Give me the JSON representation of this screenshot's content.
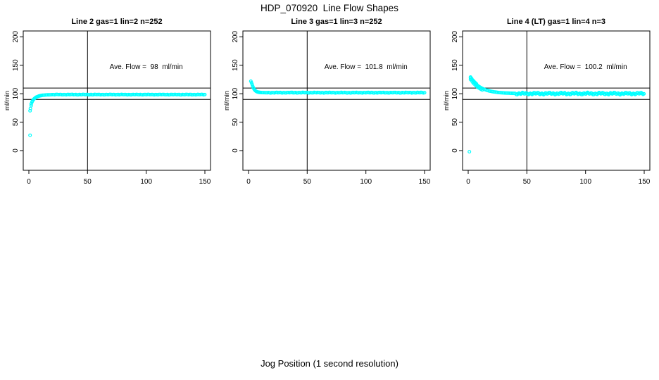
{
  "figure": {
    "title": "HDP_070920  Line Flow Shapes",
    "xlabel": "Jog Position (1 second resolution)",
    "background": "#ffffff",
    "axis_color": "#000000",
    "marker_color": "#00ffff"
  },
  "chart_data": [
    {
      "type": "scatter",
      "title": "Line 2 gas=1 lin=2 n=252",
      "gas": 1,
      "lin": 2,
      "n": 252,
      "annotation": "Ave. Flow =  98  ml/min",
      "ave_flow_ml_min": 98,
      "ylabel": "ml/min",
      "x_ticks": [
        0,
        50,
        100,
        150
      ],
      "y_ticks": [
        0,
        50,
        100,
        150,
        200
      ],
      "xlim": [
        0,
        150
      ],
      "hlines": [
        90,
        110
      ],
      "vlines": [
        50
      ],
      "annotation_pos": [
        100,
        148
      ],
      "points": [
        [
          1,
          27
        ],
        [
          1,
          70
        ],
        [
          1.3,
          74
        ],
        [
          2,
          79
        ],
        [
          2,
          82
        ],
        [
          2.6,
          85
        ],
        [
          3,
          87
        ],
        [
          3.5,
          88.5
        ],
        [
          4,
          90
        ],
        [
          4.5,
          91
        ],
        [
          5,
          92
        ],
        [
          5.5,
          92.8
        ],
        [
          6,
          93.5
        ],
        [
          6.5,
          94.1
        ],
        [
          7,
          94.6
        ],
        [
          7.5,
          95
        ],
        [
          8,
          95.4
        ],
        [
          8.5,
          95.8
        ],
        [
          9,
          96.1
        ],
        [
          9.5,
          96.4
        ],
        [
          10,
          96.6
        ],
        [
          10.5,
          96.8
        ],
        [
          11,
          97
        ],
        [
          12,
          97.3
        ],
        [
          13,
          97.5
        ],
        [
          14,
          97.7
        ],
        [
          15,
          97.8
        ],
        [
          16,
          97.9
        ],
        [
          17,
          98
        ],
        [
          18,
          98.1
        ],
        [
          19,
          98.2
        ],
        [
          20,
          98.3
        ]
      ],
      "plateau": {
        "x_from": 21,
        "x_to": 150,
        "step": 1,
        "y": 98.4,
        "jitter": 0.3
      }
    },
    {
      "type": "scatter",
      "title": "Line 3 gas=1 lin=3 n=252",
      "gas": 1,
      "lin": 3,
      "n": 252,
      "annotation": "Ave. Flow =  101.8  ml/min",
      "ave_flow_ml_min": 101.8,
      "ylabel": "ml/min",
      "x_ticks": [
        0,
        50,
        100,
        150
      ],
      "y_ticks": [
        0,
        50,
        100,
        150,
        200
      ],
      "xlim": [
        0,
        150
      ],
      "hlines": [
        90,
        110
      ],
      "vlines": [
        50
      ],
      "annotation_pos": [
        100,
        148
      ],
      "points": [
        [
          2,
          122
        ],
        [
          2.5,
          119.5
        ],
        [
          3,
          116.5
        ],
        [
          3.5,
          113.5
        ],
        [
          4,
          111
        ],
        [
          4.5,
          109
        ],
        [
          5,
          107.3
        ],
        [
          5.5,
          106
        ],
        [
          6,
          105
        ],
        [
          6.5,
          104.3
        ],
        [
          7,
          103.7
        ],
        [
          7.5,
          103.2
        ],
        [
          8,
          102.9
        ],
        [
          8.5,
          102.6
        ],
        [
          9,
          102.4
        ],
        [
          9.5,
          102.3
        ],
        [
          10,
          102.2
        ],
        [
          11,
          102
        ],
        [
          12,
          101.9
        ],
        [
          13,
          101.9
        ],
        [
          14,
          101.8
        ],
        [
          15,
          101.8
        ]
      ],
      "plateau": {
        "x_from": 16,
        "x_to": 150,
        "step": 1,
        "y": 101.8,
        "jitter": 0.35
      }
    },
    {
      "type": "scatter",
      "title": "Line 4 (LT) gas=1 lin=4 n=3",
      "gas": 1,
      "lin": 4,
      "n": 3,
      "annotation": "Ave. Flow =  100.2  ml/min",
      "ave_flow_ml_min": 100.2,
      "ylabel": "ml/min",
      "x_ticks": [
        0,
        50,
        100,
        150
      ],
      "y_ticks": [
        0,
        50,
        100,
        150,
        200
      ],
      "xlim": [
        0,
        150
      ],
      "hlines": [
        90,
        110
      ],
      "vlines": [
        50
      ],
      "annotation_pos": [
        100,
        148
      ],
      "points": [
        [
          1,
          -2
        ],
        [
          2,
          128
        ],
        [
          3,
          125.1
        ],
        [
          4,
          122.4
        ],
        [
          5,
          120.1
        ],
        [
          6,
          118
        ],
        [
          7,
          116.1
        ],
        [
          8,
          114.4
        ],
        [
          9,
          112.9
        ],
        [
          10,
          111.6
        ],
        [
          11,
          110.4
        ],
        [
          12,
          109.3
        ],
        [
          13,
          108.3
        ],
        [
          14,
          107.5
        ],
        [
          15,
          106.7
        ],
        [
          16,
          106
        ],
        [
          17,
          105.4
        ],
        [
          18,
          104.8
        ],
        [
          19,
          104.4
        ],
        [
          20,
          103.9
        ],
        [
          21,
          103.5
        ],
        [
          22,
          103.2
        ],
        [
          23,
          102.9
        ],
        [
          24,
          102.6
        ],
        [
          25,
          102.3
        ],
        [
          26,
          102.1
        ],
        [
          27,
          101.9
        ],
        [
          28,
          101.7
        ],
        [
          29,
          101.6
        ],
        [
          30,
          101.4
        ],
        [
          31,
          101.3
        ],
        [
          32,
          101.2
        ],
        [
          33,
          101.1
        ],
        [
          34,
          101
        ],
        [
          35,
          100.9
        ],
        [
          36,
          100.8
        ],
        [
          37,
          100.8
        ],
        [
          38,
          100.7
        ],
        [
          39,
          100.7
        ],
        [
          40,
          100.6
        ],
        [
          2,
          125.2
        ],
        [
          3,
          122.3
        ],
        [
          4,
          119.6
        ],
        [
          5,
          117.3
        ],
        [
          6,
          115.2
        ],
        [
          7,
          113.3
        ],
        [
          8,
          111.6
        ],
        [
          9,
          110.1
        ],
        [
          10,
          108.8
        ],
        [
          11,
          107.6
        ],
        [
          12,
          106.5
        ],
        [
          2,
          129.3
        ],
        [
          3,
          126.4
        ],
        [
          4,
          123.7
        ],
        [
          5,
          121.4
        ],
        [
          6,
          119.3
        ],
        [
          7,
          117.4
        ]
      ],
      "plateau": {
        "x_from": 41,
        "x_to": 150,
        "step": 0.75,
        "y": 100.2,
        "jitter": 1.3
      }
    }
  ]
}
